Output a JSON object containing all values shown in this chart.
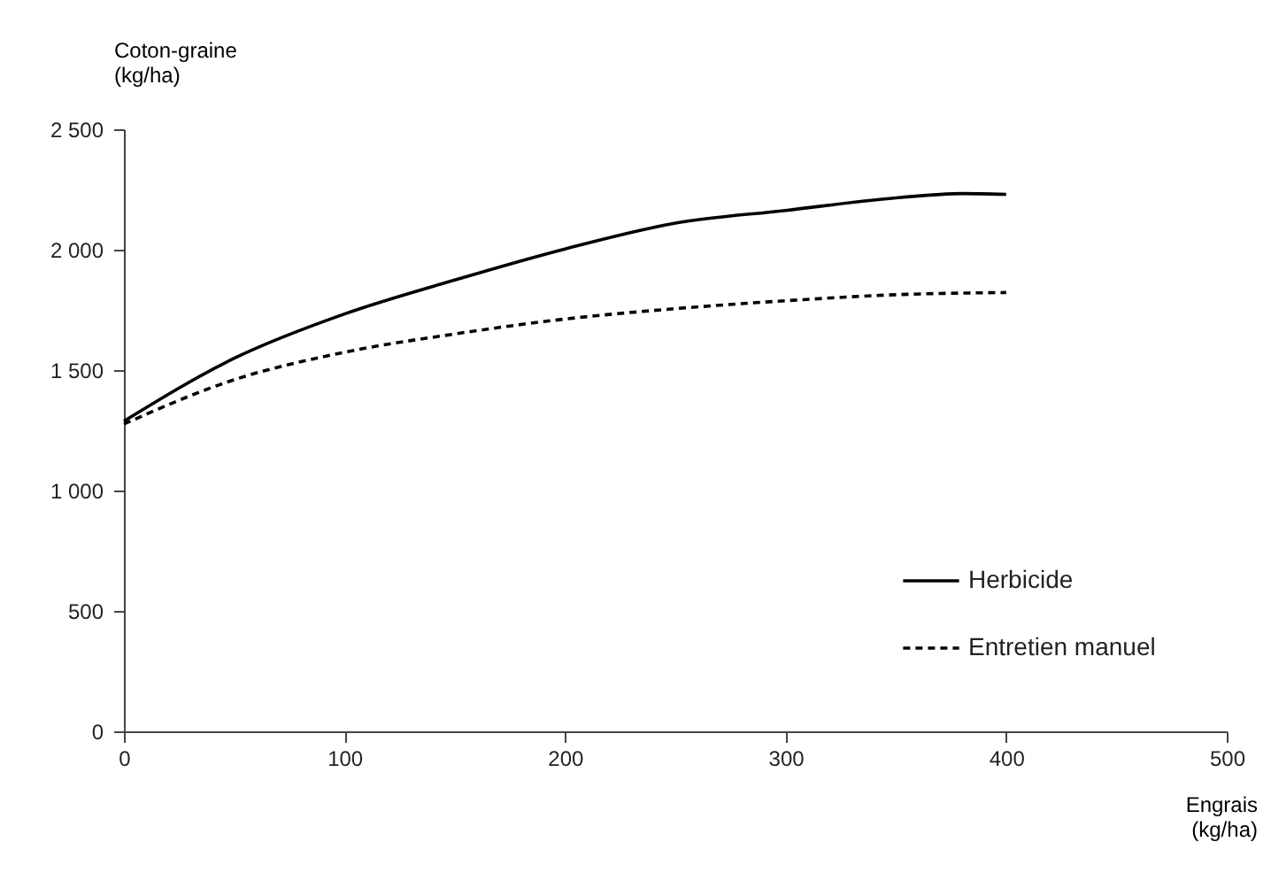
{
  "chart_data": {
    "type": "line",
    "xlabel": "Engrais\n(kg/ha)",
    "ylabel": "Coton-graine\n(kg/ha)",
    "x": [
      0,
      50,
      100,
      150,
      200,
      250,
      300,
      350,
      380,
      400
    ],
    "series": [
      {
        "name": "Herbicide",
        "color": "#000000",
        "line_style": "solid",
        "values": [
          1288,
          1549,
          1733,
          1874,
          2003,
          2110,
          2163,
          2215,
          2233,
          2230
        ]
      },
      {
        "name": "Entretien manuel",
        "color": "#000000",
        "line_style": "dashed",
        "x": [
          0,
          50,
          100,
          150,
          200,
          250,
          300,
          350,
          400
        ],
        "values": [
          1276,
          1460,
          1574,
          1650,
          1712,
          1755,
          1788,
          1813,
          1822
        ]
      }
    ],
    "xlim": [
      0,
      500
    ],
    "xticks": [
      0,
      100,
      200,
      300,
      400,
      500
    ],
    "ylim": [
      0,
      2500
    ],
    "yticks": [
      0,
      500,
      {
        "value": 1000,
        "label": "1 000"
      },
      {
        "value": 1500,
        "label": "1 500"
      },
      {
        "value": 2000,
        "label": "2 000"
      },
      {
        "value": 2500,
        "label": "2 500"
      }
    ],
    "grid": false,
    "legend": "bottom right",
    "marker": "none"
  }
}
